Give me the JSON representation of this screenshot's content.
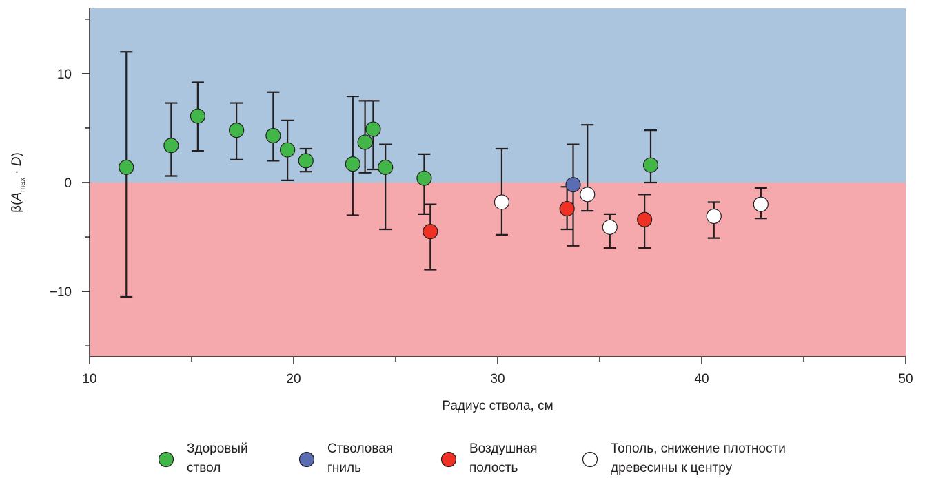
{
  "chart_data": {
    "type": "scatter",
    "title": "",
    "xlabel": "Радиус ствола, см",
    "ylabel": {
      "prefix": "β(",
      "symbol": "A",
      "subscript": "max",
      "middle": " · ",
      "symbol2": "D",
      "suffix": ")"
    },
    "xlim": [
      10,
      50
    ],
    "ylim": [
      -16,
      16
    ],
    "x_ticks": [
      10,
      20,
      30,
      40,
      50
    ],
    "x_tick_labels": [
      "10",
      "20",
      "30",
      "40",
      "50"
    ],
    "x_minor_ticks": [
      15,
      25,
      35,
      45
    ],
    "y_ticks": [
      10,
      0,
      -10
    ],
    "y_tick_labels": [
      "10",
      "0",
      "−10"
    ],
    "y_minor_ticks": [
      15,
      5,
      -5,
      -15
    ],
    "grid": false,
    "regions": [
      {
        "name": "positive",
        "y_from": 0,
        "y_to": 16,
        "color": "#abc5df"
      },
      {
        "name": "negative",
        "y_from": -16,
        "y_to": 0,
        "color": "#f6a9ac"
      }
    ],
    "legend_position": "bottom",
    "series": [
      {
        "name": "Здоровый ствол",
        "legend_lines": [
          "Здоровый",
          "ствол"
        ],
        "color": "#42b649",
        "points": [
          {
            "x": 11.8,
            "y": 1.4,
            "low": -10.5,
            "high": 12.0
          },
          {
            "x": 14.0,
            "y": 3.4,
            "low": 0.6,
            "high": 7.3
          },
          {
            "x": 15.3,
            "y": 6.1,
            "low": 2.9,
            "high": 9.2
          },
          {
            "x": 17.2,
            "y": 4.8,
            "low": 2.1,
            "high": 7.3
          },
          {
            "x": 19.0,
            "y": 4.3,
            "low": 2.0,
            "high": 8.3
          },
          {
            "x": 19.7,
            "y": 3.0,
            "low": 0.2,
            "high": 5.7
          },
          {
            "x": 20.6,
            "y": 2.0,
            "low": 1.0,
            "high": 3.1
          },
          {
            "x": 22.9,
            "y": 1.7,
            "low": -3.0,
            "high": 7.9
          },
          {
            "x": 23.5,
            "y": 3.7,
            "low": 0.9,
            "high": 7.5
          },
          {
            "x": 23.9,
            "y": 4.9,
            "low": 1.2,
            "high": 7.5
          },
          {
            "x": 24.5,
            "y": 1.4,
            "low": -4.3,
            "high": 3.5
          },
          {
            "x": 26.4,
            "y": 0.4,
            "low": -2.9,
            "high": 2.6
          },
          {
            "x": 37.5,
            "y": 1.6,
            "low": 0.0,
            "high": 4.8
          }
        ]
      },
      {
        "name": "Стволовая гниль",
        "legend_lines": [
          "Стволовая",
          "гниль"
        ],
        "color": "#5a6cb2",
        "points": [
          {
            "x": 33.7,
            "y": -0.2,
            "low": -5.8,
            "high": 3.5
          }
        ]
      },
      {
        "name": "Воздушная полость",
        "legend_lines": [
          "Воздушная",
          "полость"
        ],
        "color": "#ee3124",
        "points": [
          {
            "x": 26.7,
            "y": -4.5,
            "low": -8.0,
            "high": -2.0
          },
          {
            "x": 33.4,
            "y": -2.4,
            "low": -4.3,
            "high": -0.4
          },
          {
            "x": 37.2,
            "y": -3.4,
            "low": -6.0,
            "high": -1.1
          }
        ]
      },
      {
        "name": "Тополь, снижение плотности древесины к центру",
        "legend_lines": [
          "Тополь, снижение плотности",
          "древесины к центру"
        ],
        "color": "#ffffff",
        "points": [
          {
            "x": 30.2,
            "y": -1.8,
            "low": -4.8,
            "high": 3.1
          },
          {
            "x": 34.4,
            "y": -1.1,
            "low": -2.6,
            "high": 5.3
          },
          {
            "x": 35.5,
            "y": -4.1,
            "low": -6.0,
            "high": -2.9
          },
          {
            "x": 40.6,
            "y": -3.1,
            "low": -5.1,
            "high": -1.8
          },
          {
            "x": 42.9,
            "y": -2.0,
            "low": -3.3,
            "high": -0.5
          }
        ]
      }
    ]
  }
}
